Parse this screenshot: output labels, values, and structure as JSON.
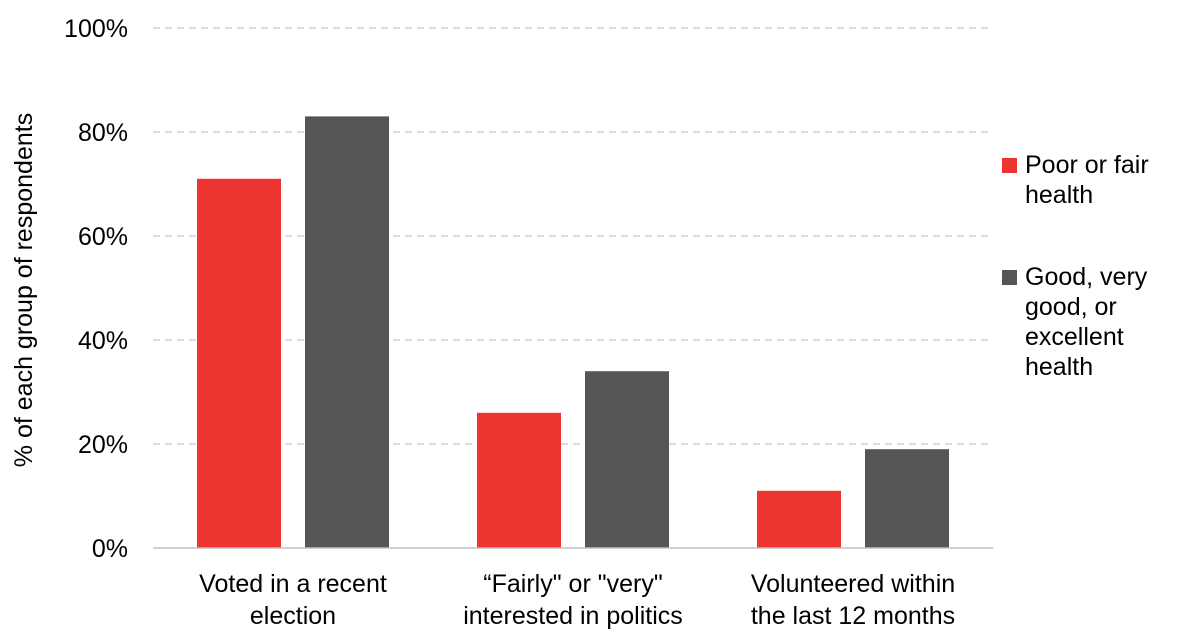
{
  "chart_data": {
    "type": "bar",
    "ylabel": "% of each group of respondents",
    "ylim": [
      0,
      100
    ],
    "yticks": [
      0,
      20,
      40,
      60,
      80,
      100
    ],
    "ytick_labels": [
      "0%",
      "20%",
      "40%",
      "60%",
      "80%",
      "100%"
    ],
    "grid": "horizontal dashed",
    "legend_position": "right",
    "categories": [
      [
        "Voted in a recent",
        "election"
      ],
      [
        "“Fairly\" or \"very\"",
        "interested in politics"
      ],
      [
        "Volunteered within",
        "the last 12 months"
      ]
    ],
    "series": [
      {
        "name": "Poor or fair health",
        "legend_lines": [
          "Poor or fair",
          "health"
        ],
        "color": "#ee3431",
        "values": [
          71,
          26,
          11
        ]
      },
      {
        "name": "Good, very good, or excellent health",
        "legend_lines": [
          "Good, very",
          "good, or",
          "excellent",
          "health"
        ],
        "color": "#555555",
        "values": [
          83,
          34,
          19
        ]
      }
    ]
  }
}
